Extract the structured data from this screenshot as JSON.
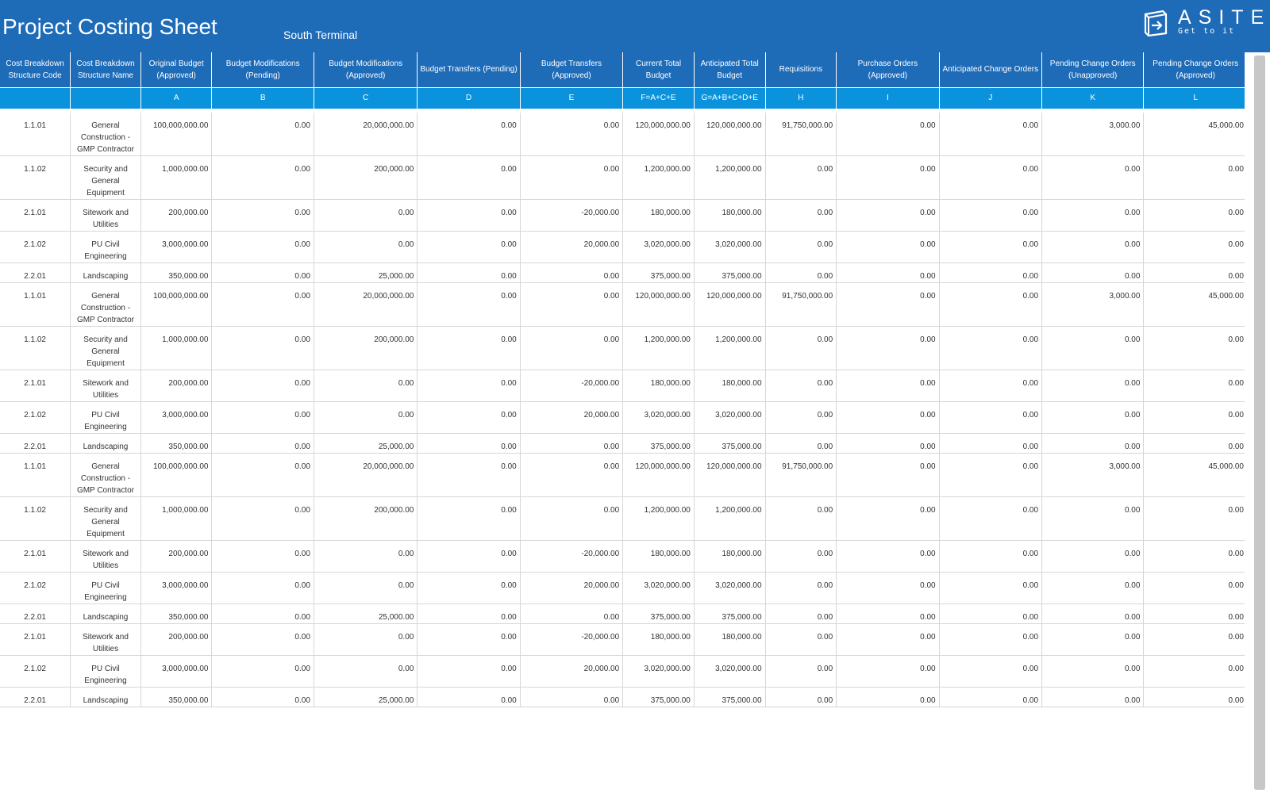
{
  "header": {
    "title": "Project Costing Sheet",
    "subtitle": "South Terminal",
    "logo": {
      "word": "ASITE",
      "tagline": "Get to it"
    },
    "background_color": "#1e6bb8"
  },
  "table": {
    "columns": [
      "Cost Breakdown Structure Code",
      "Cost Breakdown Structure Name",
      "Original Budget (Approved)",
      "Budget Modifications (Pending)",
      "Budget Modifications (Approved)",
      "Budget Transfers (Pending)",
      "Budget Transfers (Approved)",
      "Current Total Budget",
      "Anticipated Total Budget",
      "Requisitions",
      "Purchase Orders (Approved)",
      "Anticipated Change Orders",
      "Pending Change Orders (Unapproved)",
      "Pending Change Orders (Approved)"
    ],
    "letters": [
      "",
      "",
      "A",
      "B",
      "C",
      "D",
      "E",
      "F=A+C+E",
      "G=A+B+C+D+E",
      "H",
      "I",
      "J",
      "K",
      "L"
    ],
    "letter_row_color": "#0a93dc",
    "rows": [
      [
        "1.1.01",
        "General Construction - GMP Contractor",
        "100,000,000.00",
        "0.00",
        "20,000,000.00",
        "0.00",
        "0.00",
        "120,000,000.00",
        "120,000,000.00",
        "91,750,000.00",
        "0.00",
        "0.00",
        "3,000.00",
        "45,000.00"
      ],
      [
        "1.1.02",
        "Security and General Equipment",
        "1,000,000.00",
        "0.00",
        "200,000.00",
        "0.00",
        "0.00",
        "1,200,000.00",
        "1,200,000.00",
        "0.00",
        "0.00",
        "0.00",
        "0.00",
        "0.00"
      ],
      [
        "2.1.01",
        "Sitework and Utilities",
        "200,000.00",
        "0.00",
        "0.00",
        "0.00",
        "-20,000.00",
        "180,000.00",
        "180,000.00",
        "0.00",
        "0.00",
        "0.00",
        "0.00",
        "0.00"
      ],
      [
        "2.1.02",
        "PU Civil Engineering",
        "3,000,000.00",
        "0.00",
        "0.00",
        "0.00",
        "20,000.00",
        "3,020,000.00",
        "3,020,000.00",
        "0.00",
        "0.00",
        "0.00",
        "0.00",
        "0.00"
      ],
      [
        "2.2.01",
        "Landscaping",
        "350,000.00",
        "0.00",
        "25,000.00",
        "0.00",
        "0.00",
        "375,000.00",
        "375,000.00",
        "0.00",
        "0.00",
        "0.00",
        "0.00",
        "0.00"
      ],
      [
        "1.1.01",
        "General Construction - GMP Contractor",
        "100,000,000.00",
        "0.00",
        "20,000,000.00",
        "0.00",
        "0.00",
        "120,000,000.00",
        "120,000,000.00",
        "91,750,000.00",
        "0.00",
        "0.00",
        "3,000.00",
        "45,000.00"
      ],
      [
        "1.1.02",
        "Security and General Equipment",
        "1,000,000.00",
        "0.00",
        "200,000.00",
        "0.00",
        "0.00",
        "1,200,000.00",
        "1,200,000.00",
        "0.00",
        "0.00",
        "0.00",
        "0.00",
        "0.00"
      ],
      [
        "2.1.01",
        "Sitework and Utilities",
        "200,000.00",
        "0.00",
        "0.00",
        "0.00",
        "-20,000.00",
        "180,000.00",
        "180,000.00",
        "0.00",
        "0.00",
        "0.00",
        "0.00",
        "0.00"
      ],
      [
        "2.1.02",
        "PU Civil Engineering",
        "3,000,000.00",
        "0.00",
        "0.00",
        "0.00",
        "20,000.00",
        "3,020,000.00",
        "3,020,000.00",
        "0.00",
        "0.00",
        "0.00",
        "0.00",
        "0.00"
      ],
      [
        "2.2.01",
        "Landscaping",
        "350,000.00",
        "0.00",
        "25,000.00",
        "0.00",
        "0.00",
        "375,000.00",
        "375,000.00",
        "0.00",
        "0.00",
        "0.00",
        "0.00",
        "0.00"
      ],
      [
        "1.1.01",
        "General Construction - GMP Contractor",
        "100,000,000.00",
        "0.00",
        "20,000,000.00",
        "0.00",
        "0.00",
        "120,000,000.00",
        "120,000,000.00",
        "91,750,000.00",
        "0.00",
        "0.00",
        "3,000.00",
        "45,000.00"
      ],
      [
        "1.1.02",
        "Security and General Equipment",
        "1,000,000.00",
        "0.00",
        "200,000.00",
        "0.00",
        "0.00",
        "1,200,000.00",
        "1,200,000.00",
        "0.00",
        "0.00",
        "0.00",
        "0.00",
        "0.00"
      ],
      [
        "2.1.01",
        "Sitework and Utilities",
        "200,000.00",
        "0.00",
        "0.00",
        "0.00",
        "-20,000.00",
        "180,000.00",
        "180,000.00",
        "0.00",
        "0.00",
        "0.00",
        "0.00",
        "0.00"
      ],
      [
        "2.1.02",
        "PU Civil Engineering",
        "3,000,000.00",
        "0.00",
        "0.00",
        "0.00",
        "20,000.00",
        "3,020,000.00",
        "3,020,000.00",
        "0.00",
        "0.00",
        "0.00",
        "0.00",
        "0.00"
      ],
      [
        "2.2.01",
        "Landscaping",
        "350,000.00",
        "0.00",
        "25,000.00",
        "0.00",
        "0.00",
        "375,000.00",
        "375,000.00",
        "0.00",
        "0.00",
        "0.00",
        "0.00",
        "0.00"
      ],
      [
        "2.1.01",
        "Sitework and Utilities",
        "200,000.00",
        "0.00",
        "0.00",
        "0.00",
        "-20,000.00",
        "180,000.00",
        "180,000.00",
        "0.00",
        "0.00",
        "0.00",
        "0.00",
        "0.00"
      ],
      [
        "2.1.02",
        "PU Civil Engineering",
        "3,000,000.00",
        "0.00",
        "0.00",
        "0.00",
        "20,000.00",
        "3,020,000.00",
        "3,020,000.00",
        "0.00",
        "0.00",
        "0.00",
        "0.00",
        "0.00"
      ],
      [
        "2.2.01",
        "Landscaping",
        "350,000.00",
        "0.00",
        "25,000.00",
        "0.00",
        "0.00",
        "375,000.00",
        "375,000.00",
        "0.00",
        "0.00",
        "0.00",
        "0.00",
        "0.00"
      ]
    ]
  }
}
